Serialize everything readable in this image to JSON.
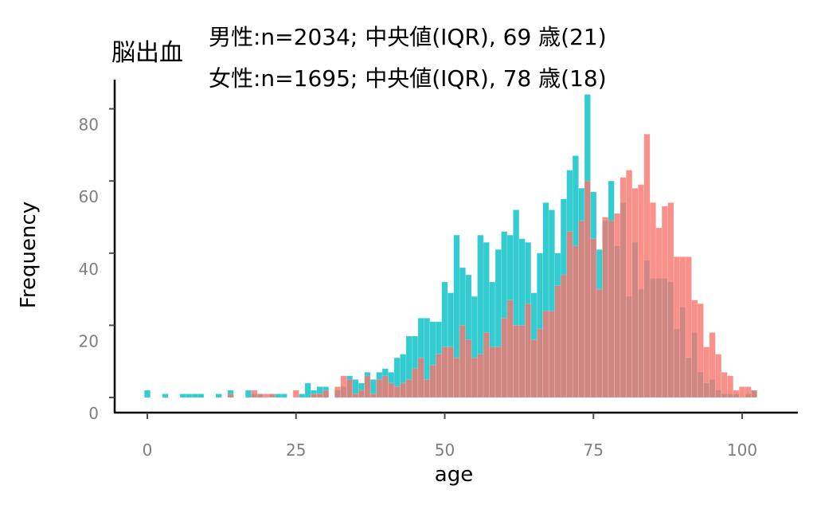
{
  "chart_data": {
    "type": "histogram",
    "title": "脳出血",
    "subtitle_lines": [
      "男性:n=2034;  中央値(IQR), 69 歳(21)",
      "女性:n=1695;  中央値(IQR), 78 歳(18)"
    ],
    "xlabel": "age",
    "ylabel": "Frequency",
    "xlim": [
      -5,
      110
    ],
    "ylim": [
      -4,
      88
    ],
    "x_ticks": [
      0,
      25,
      50,
      75,
      100
    ],
    "y_ticks": [
      0,
      20,
      40,
      60,
      80
    ],
    "bin_width": 1,
    "grid": false,
    "legend": "none",
    "colors": {
      "male": "#00BFC4",
      "female": "#F8766D",
      "overlap_note": "bars drawn semi-transparent (alpha ~0.8), female layered over male"
    },
    "series": [
      {
        "name": "男性",
        "color": "#00BFC4",
        "x": [
          0,
          3,
          6,
          7,
          8,
          9,
          12,
          14,
          17,
          18,
          19,
          21,
          22,
          23,
          26,
          27,
          28,
          29,
          30,
          32,
          33,
          34,
          35,
          36,
          37,
          38,
          39,
          40,
          41,
          42,
          43,
          44,
          45,
          46,
          47,
          48,
          49,
          50,
          51,
          52,
          53,
          54,
          55,
          56,
          57,
          58,
          59,
          60,
          61,
          62,
          63,
          64,
          65,
          66,
          67,
          68,
          69,
          70,
          71,
          72,
          73,
          74,
          75,
          76,
          77,
          78,
          79,
          80,
          81,
          82,
          83,
          84,
          85,
          86,
          87,
          88,
          89,
          90,
          91,
          92,
          93,
          94,
          95,
          96,
          97,
          98,
          99,
          101,
          102
        ],
        "values": [
          2,
          1,
          1,
          1,
          1,
          1,
          1,
          2,
          2,
          1,
          1,
          1,
          1,
          1,
          1,
          4,
          2,
          3,
          3,
          2,
          3,
          6,
          5,
          4,
          7,
          5,
          7,
          8,
          7,
          11,
          12,
          17,
          17,
          22,
          22,
          21,
          21,
          32,
          29,
          45,
          36,
          34,
          28,
          45,
          43,
          32,
          41,
          46,
          45,
          52,
          44,
          43,
          29,
          40,
          54,
          52,
          40,
          55,
          63,
          67,
          58,
          84,
          57,
          41,
          49,
          60,
          42,
          54,
          28,
          43,
          30,
          38,
          33,
          33,
          33,
          32,
          19,
          25,
          11,
          18,
          7,
          4,
          5,
          2,
          1,
          1,
          1,
          1,
          2
        ]
      },
      {
        "name": "女性",
        "color": "#F8766D",
        "x": [
          14,
          18,
          19,
          20,
          21,
          25,
          28,
          29,
          30,
          32,
          33,
          34,
          35,
          36,
          37,
          38,
          39,
          40,
          41,
          42,
          43,
          44,
          45,
          46,
          47,
          48,
          49,
          50,
          51,
          52,
          53,
          54,
          55,
          56,
          57,
          58,
          59,
          60,
          61,
          62,
          63,
          64,
          65,
          66,
          67,
          68,
          69,
          70,
          71,
          72,
          73,
          74,
          75,
          76,
          77,
          78,
          79,
          80,
          81,
          82,
          83,
          84,
          85,
          86,
          87,
          88,
          89,
          90,
          91,
          92,
          93,
          94,
          95,
          96,
          97,
          98,
          99,
          100,
          101,
          102
        ],
        "values": [
          1,
          2,
          1,
          1,
          1,
          2,
          1,
          1,
          2,
          3,
          6,
          5,
          1,
          2,
          6,
          1,
          5,
          6,
          4,
          3,
          4,
          5,
          8,
          11,
          5,
          9,
          12,
          14,
          14,
          11,
          20,
          16,
          11,
          12,
          18,
          14,
          14,
          22,
          27,
          20,
          20,
          26,
          16,
          19,
          24,
          24,
          31,
          34,
          46,
          42,
          49,
          60,
          44,
          30,
          50,
          49,
          51,
          61,
          63,
          58,
          59,
          73,
          54,
          47,
          53,
          54,
          39,
          39,
          39,
          27,
          26,
          14,
          18,
          12,
          7,
          6,
          2,
          3,
          3,
          2
        ]
      }
    ]
  }
}
